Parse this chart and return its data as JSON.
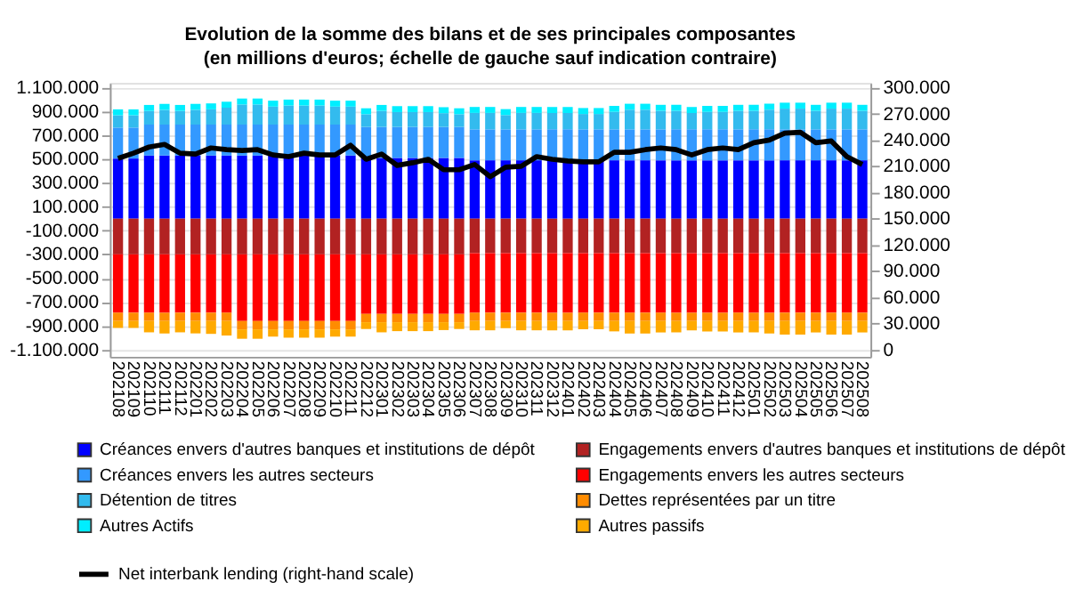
{
  "chart_data": {
    "type": "bar",
    "title": "Evolution de la somme des bilans et de ses principales composantes",
    "subtitle": "(en millions d'euros; échelle de gauche sauf indication contraire)",
    "categories": [
      "202108",
      "202109",
      "202110",
      "202111",
      "202112",
      "202201",
      "202202",
      "202203",
      "202204",
      "202205",
      "202206",
      "202207",
      "202208",
      "202209",
      "202210",
      "202211",
      "202212",
      "202301",
      "202302",
      "202303",
      "202304",
      "202305",
      "202306",
      "202307",
      "202308",
      "202309",
      "202310",
      "202311",
      "202312",
      "202401",
      "202402",
      "202403",
      "202404",
      "202405",
      "202406",
      "202407",
      "202408",
      "202409",
      "202410",
      "202411",
      "202412",
      "202501",
      "202502",
      "202503",
      "202504",
      "202505",
      "202506",
      "202507",
      "202508"
    ],
    "stacked": true,
    "series": [
      {
        "name": "Créances envers d'autres banques et institutions de dépôt",
        "color": "#0000ff",
        "values": [
          505000,
          505000,
          530000,
          530000,
          530000,
          530000,
          530000,
          530000,
          530000,
          530000,
          530000,
          530000,
          530000,
          530000,
          530000,
          530000,
          510000,
          510000,
          510000,
          510000,
          510000,
          510000,
          510000,
          490000,
          490000,
          490000,
          490000,
          490000,
          490000,
          490000,
          490000,
          490000,
          490000,
          490000,
          490000,
          490000,
          490000,
          490000,
          490000,
          490000,
          490000,
          490000,
          490000,
          490000,
          490000,
          490000,
          490000,
          490000,
          490000
        ]
      },
      {
        "name": "Créances envers les autres secteurs",
        "color": "#3399ff",
        "values": [
          260000,
          260000,
          260000,
          260000,
          260000,
          260000,
          260000,
          260000,
          260000,
          260000,
          260000,
          260000,
          260000,
          260000,
          260000,
          260000,
          260000,
          260000,
          260000,
          260000,
          260000,
          260000,
          260000,
          260000,
          260000,
          260000,
          260000,
          260000,
          260000,
          260000,
          260000,
          260000,
          260000,
          260000,
          260000,
          260000,
          260000,
          260000,
          260000,
          260000,
          260000,
          260000,
          260000,
          260000,
          260000,
          260000,
          260000,
          260000,
          260000
        ]
      },
      {
        "name": "Détention de titres",
        "color": "#33bbee",
        "values": [
          103000,
          103000,
          115000,
          124000,
          115000,
          124000,
          128000,
          142000,
          169000,
          169000,
          151000,
          160000,
          160000,
          160000,
          151000,
          151000,
          107000,
          135000,
          125000,
          125000,
          125000,
          116000,
          107000,
          138000,
          138000,
          120000,
          138000,
          138000,
          138000,
          138000,
          129000,
          129000,
          147000,
          165000,
          165000,
          156000,
          156000,
          138000,
          147000,
          147000,
          156000,
          156000,
          165000,
          174000,
          174000,
          156000,
          174000,
          174000,
          156000
        ]
      },
      {
        "name": "Autres Actifs",
        "color": "#00eeff",
        "values": [
          50000,
          50000,
          50000,
          50000,
          50000,
          50000,
          50000,
          50000,
          50000,
          50000,
          50000,
          50000,
          50000,
          50000,
          50000,
          50000,
          50000,
          50000,
          50000,
          50000,
          50000,
          50000,
          50000,
          50000,
          50000,
          50000,
          50000,
          50000,
          50000,
          50000,
          50000,
          50000,
          50000,
          50000,
          50000,
          50000,
          50000,
          50000,
          50000,
          50000,
          50000,
          50000,
          50000,
          50000,
          50000,
          50000,
          50000,
          50000,
          50000
        ]
      },
      {
        "name": "Engagements envers d'autres banques et institutions de dépôt",
        "color": "#b22222",
        "values": [
          -300000,
          -300000,
          -300000,
          -300000,
          -300000,
          -300000,
          -300000,
          -300000,
          -300000,
          -300000,
          -300000,
          -300000,
          -300000,
          -300000,
          -300000,
          -300000,
          -300000,
          -300000,
          -300000,
          -300000,
          -300000,
          -300000,
          -300000,
          -290000,
          -290000,
          -290000,
          -290000,
          -290000,
          -290000,
          -290000,
          -290000,
          -290000,
          -290000,
          -290000,
          -290000,
          -290000,
          -290000,
          -290000,
          -290000,
          -290000,
          -290000,
          -290000,
          -290000,
          -290000,
          -290000,
          -290000,
          -290000,
          -290000,
          -290000
        ]
      },
      {
        "name": "Engagements envers les autres secteurs",
        "color": "#ff0000",
        "values": [
          -490000,
          -490000,
          -490000,
          -490000,
          -490000,
          -490000,
          -490000,
          -490000,
          -560000,
          -560000,
          -560000,
          -560000,
          -560000,
          -560000,
          -560000,
          -560000,
          -500000,
          -500000,
          -500000,
          -500000,
          -500000,
          -500000,
          -500000,
          -500000,
          -500000,
          -500000,
          -500000,
          -500000,
          -500000,
          -500000,
          -500000,
          -500000,
          -500000,
          -500000,
          -500000,
          -500000,
          -500000,
          -500000,
          -500000,
          -500000,
          -500000,
          -500000,
          -500000,
          -500000,
          -500000,
          -500000,
          -500000,
          -500000,
          -500000
        ]
      },
      {
        "name": "Dettes représentées par un titre",
        "color": "#ff8c00",
        "values": [
          -70000,
          -70000,
          -70000,
          -70000,
          -70000,
          -70000,
          -70000,
          -70000,
          -70000,
          -70000,
          -70000,
          -70000,
          -70000,
          -70000,
          -70000,
          -70000,
          -70000,
          -70000,
          -70000,
          -70000,
          -70000,
          -70000,
          -70000,
          -70000,
          -70000,
          -70000,
          -70000,
          -70000,
          -70000,
          -70000,
          -70000,
          -70000,
          -70000,
          -70000,
          -70000,
          -70000,
          -70000,
          -70000,
          -70000,
          -70000,
          -70000,
          -70000,
          -70000,
          -70000,
          -70000,
          -70000,
          -70000,
          -70000,
          -70000
        ]
      },
      {
        "name": "Autres passifs",
        "color": "#ffaa00",
        "values": [
          -58000,
          -58000,
          -95000,
          -104000,
          -95000,
          -104000,
          -108000,
          -122000,
          -79000,
          -79000,
          -61000,
          -70000,
          -70000,
          -70000,
          -61000,
          -61000,
          -57000,
          -85000,
          -75000,
          -75000,
          -75000,
          -66000,
          -57000,
          -78000,
          -78000,
          -60000,
          -78000,
          -78000,
          -78000,
          -78000,
          -69000,
          -69000,
          -87000,
          -105000,
          -105000,
          -96000,
          -96000,
          -78000,
          -87000,
          -87000,
          -96000,
          -96000,
          -105000,
          -114000,
          -114000,
          -96000,
          -114000,
          -114000,
          -96000
        ]
      },
      {
        "name": "Net interbank lending (right-hand scale)",
        "color": "#000000",
        "type": "line",
        "axis": "y2",
        "values": [
          219000,
          225000,
          232000,
          235000,
          225000,
          224000,
          231000,
          229000,
          228000,
          229000,
          223000,
          221000,
          225000,
          223000,
          223000,
          234000,
          218000,
          224000,
          211000,
          214000,
          218000,
          206000,
          206000,
          212000,
          198000,
          209000,
          210000,
          221000,
          218000,
          216000,
          215000,
          215000,
          226000,
          226000,
          229000,
          231000,
          229000,
          223000,
          229000,
          231000,
          229000,
          237000,
          240000,
          248000,
          249000,
          237000,
          239000,
          221000,
          212000
        ]
      }
    ],
    "ylim": [
      -1160000,
      1140000
    ],
    "yticks": [
      {
        "value": -1100000,
        "label": "-1.100.000"
      },
      {
        "value": -900000,
        "label": "-900.000"
      },
      {
        "value": -700000,
        "label": "-700.000"
      },
      {
        "value": -500000,
        "label": "-500.000"
      },
      {
        "value": -300000,
        "label": "-300.000"
      },
      {
        "value": -100000,
        "label": "-100.000"
      },
      {
        "value": 100000,
        "label": "100.000"
      },
      {
        "value": 300000,
        "label": "300.000"
      },
      {
        "value": 500000,
        "label": "500.000"
      },
      {
        "value": 700000,
        "label": "700.000"
      },
      {
        "value": 900000,
        "label": "900.000"
      },
      {
        "value": 1100000,
        "label": "1.100.000"
      }
    ],
    "y2lim": [
      -8182,
      305455
    ],
    "y2ticks": [
      0,
      {
        "value": 30000,
        "label": "30.000"
      },
      {
        "value": 60000,
        "label": "60.000"
      },
      {
        "value": 90000,
        "label": "90.000"
      },
      {
        "value": 120000,
        "label": "120.000"
      },
      {
        "value": 150000,
        "label": "150.000"
      },
      {
        "value": 180000,
        "label": "180.000"
      },
      {
        "value": 210000,
        "label": "210.000"
      },
      {
        "value": 240000,
        "label": "240.000"
      },
      {
        "value": 270000,
        "label": "270.000"
      },
      {
        "value": 300000,
        "label": "300.000"
      }
    ],
    "grid": "y",
    "legend": "bottom"
  }
}
